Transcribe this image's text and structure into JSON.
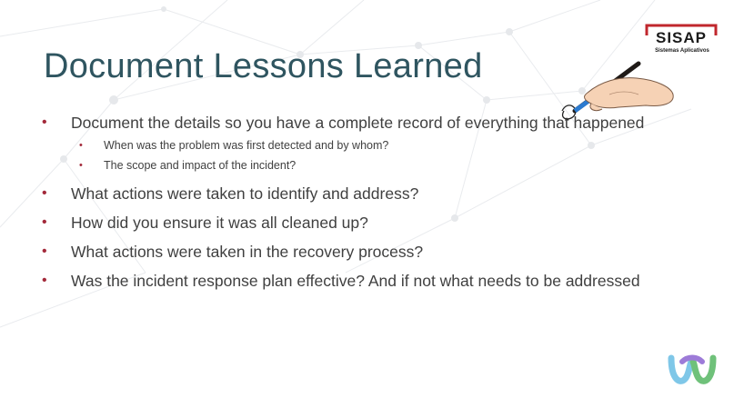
{
  "slide": {
    "title": "Document Lessons Learned",
    "bullets": [
      "Document the details so you have a complete record of everything that happened",
      "What actions were taken to identify and address?",
      "How did you ensure it was all cleaned up?",
      "What actions were taken in the recovery process?",
      "Was the incident response plan effective? And if not what needs to be addressed"
    ],
    "sub_bullets": [
      "When was the problem was first detected and by whom?",
      "The scope and impact of the incident?"
    ]
  },
  "logo": {
    "name": "SISAP",
    "tagline": "Sistemas Aplicativos"
  },
  "icons": {
    "hand_pen": "hand-with-pen-icon",
    "webex": "webex-logo-icon"
  },
  "colors": {
    "title": "#2f5560",
    "bullet": "#a3293a",
    "text": "#404040",
    "logo_red": "#c0272d"
  }
}
